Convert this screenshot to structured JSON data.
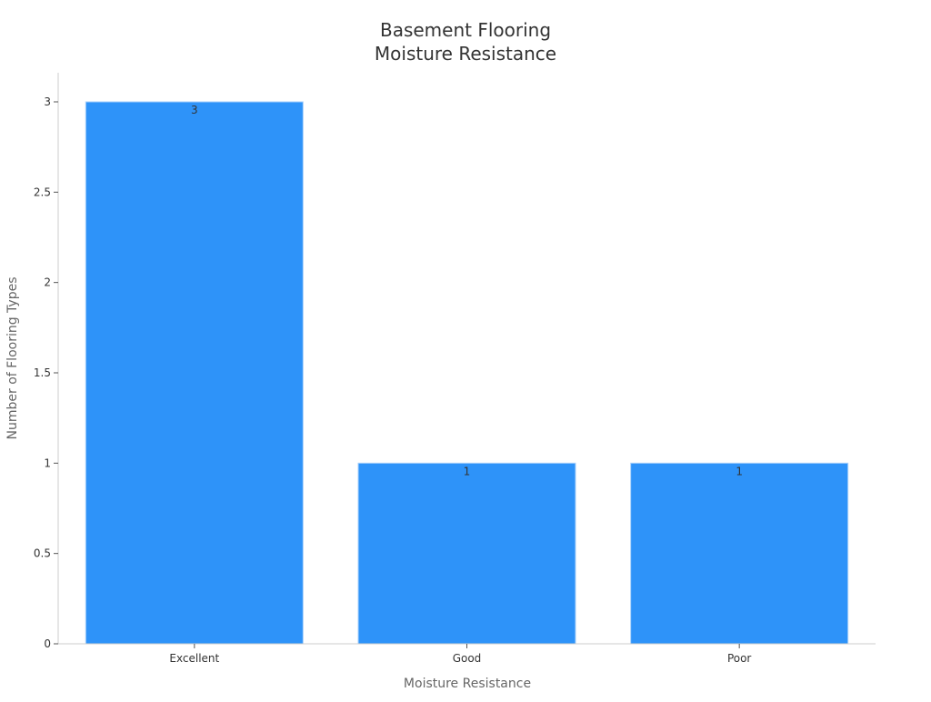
{
  "chart_data": {
    "type": "bar",
    "title": [
      "Basement Flooring",
      "Moisture Resistance"
    ],
    "xlabel": "Moisture Resistance",
    "ylabel": "Number of Flooring Types",
    "categories": [
      "Excellent",
      "Good",
      "Poor"
    ],
    "values": [
      3,
      1,
      1
    ],
    "data_labels": [
      "3",
      "1",
      "1"
    ],
    "ylim": [
      0,
      3.15
    ],
    "yticks": [
      0,
      0.5,
      1,
      1.5,
      2,
      2.5,
      3
    ],
    "ytick_labels": [
      "0",
      "0.5",
      "1",
      "1.5",
      "2",
      "2.5",
      "3"
    ],
    "grid": false,
    "colors": {
      "bar": "#2e93f9",
      "bar_edge": "#a8d0fb",
      "axis": "#cccccc",
      "text": "#333333",
      "label": "#666666"
    }
  }
}
